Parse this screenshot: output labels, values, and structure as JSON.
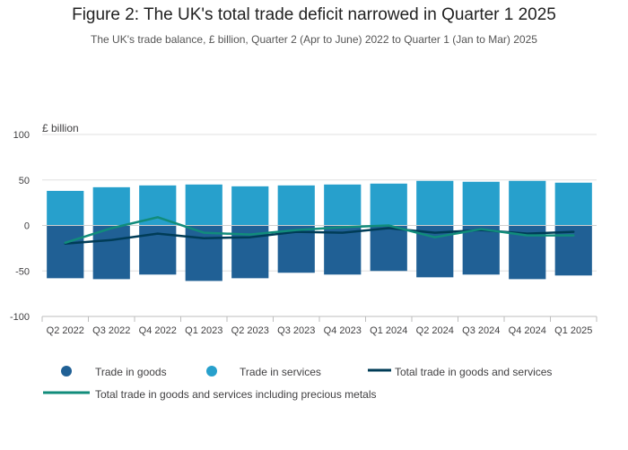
{
  "title": "Figure 2: The UK's total trade deficit narrowed in Quarter 1 2025",
  "subtitle": "The UK's trade balance, £ billion, Quarter 2 (Apr to June) 2022 to Quarter 1 (Jan to Mar) 2025",
  "colors": {
    "goods": "#206095",
    "services": "#27a0cc",
    "total": "#003c57",
    "total_precious": "#118c7b",
    "grid": "#e0e0e0",
    "axis": "#bebebe",
    "text": "#414042"
  },
  "chart_data": {
    "type": "bar",
    "stacked": true,
    "ylabel": "£ billion",
    "xlabel": "",
    "ylim": [
      -100,
      100
    ],
    "yticks": [
      100,
      50,
      0,
      -50,
      -100
    ],
    "categories": [
      "Q2 2022",
      "Q3 2022",
      "Q4 2022",
      "Q1 2023",
      "Q2 2023",
      "Q3 2023",
      "Q4 2023",
      "Q1 2024",
      "Q2 2024",
      "Q3 2024",
      "Q4 2024",
      "Q1 2025"
    ],
    "series": [
      {
        "name": "Trade in goods",
        "kind": "bar",
        "legend_symbol": "circle",
        "values": [
          -58,
          -59,
          -54,
          -61,
          -58,
          -52,
          -54,
          -50,
          -57,
          -54,
          -59,
          -55
        ]
      },
      {
        "name": "Trade in services",
        "kind": "bar",
        "legend_symbol": "circle",
        "values": [
          38,
          42,
          44,
          45,
          43,
          44,
          45,
          46,
          49,
          48,
          49,
          47
        ]
      },
      {
        "name": "Total trade in goods and services",
        "kind": "line",
        "legend_symbol": "line",
        "values": [
          -20,
          -16,
          -9,
          -14,
          -13,
          -7,
          -8,
          -3,
          -8,
          -5,
          -9,
          -7
        ]
      },
      {
        "name": "Total trade in goods and services including precious metals",
        "kind": "line",
        "legend_symbol": "line",
        "values": [
          -19,
          -3,
          9,
          -8,
          -10,
          -5,
          -2,
          0,
          -13,
          -4,
          -11,
          -11
        ]
      }
    ]
  }
}
